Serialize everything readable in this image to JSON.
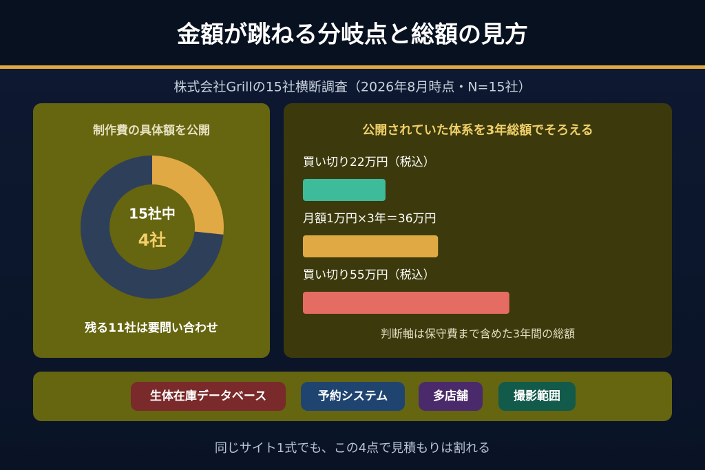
{
  "header": {
    "title": "金額が跳ねる分岐点と総額の見方",
    "subtitle": "株式会社Grillの15社横断調査（2026年8月時点・N=15社）"
  },
  "left_panel": {
    "title": "制作費の具体額を公開",
    "donut": {
      "part": 4,
      "total": 15,
      "center_top": "15社中",
      "center_bottom": "4社",
      "part_color": "#e0a944",
      "rest_color": "#2e3f5a"
    },
    "note": "残る11社は要問い合わせ"
  },
  "right_panel": {
    "title": "公開されていた体系を3年総額でそろえる",
    "bars": [
      {
        "label": "買い切り22万円（税込）",
        "value": 22,
        "color": "#3dbb9b"
      },
      {
        "label": "月額1万円×3年＝36万円",
        "value": 36,
        "color": "#e0a944"
      },
      {
        "label": "買い切り55万円（税込）",
        "value": 55,
        "color": "#e56c62"
      }
    ],
    "note": "判断軸は保守費まで含めた3年間の総額"
  },
  "tags": [
    {
      "label": "生体在庫データベース",
      "color": "#7a2a2a"
    },
    {
      "label": "予約システム",
      "color": "#1f4470"
    },
    {
      "label": "多店舗",
      "color": "#4a2a6a"
    },
    {
      "label": "撮影範囲",
      "color": "#125a4a"
    }
  ],
  "footer": "同じサイト1式でも、この4点で見積もりは割れる"
}
